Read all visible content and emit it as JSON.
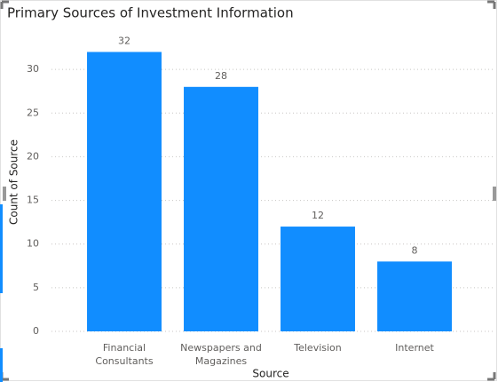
{
  "chart_data": {
    "type": "bar",
    "title": "Primary Sources of Investment Information",
    "x_label": "Source",
    "y_label": "Count of Source",
    "categories": [
      "Financial Consultants",
      "Newspapers and Magazines",
      "Television",
      "Internet"
    ],
    "values": [
      32,
      28,
      12,
      8
    ],
    "color": "#118dff",
    "ylim": [
      0,
      35
    ],
    "yticks": [
      0,
      5,
      10,
      15,
      20,
      25,
      30
    ],
    "grid": true
  }
}
